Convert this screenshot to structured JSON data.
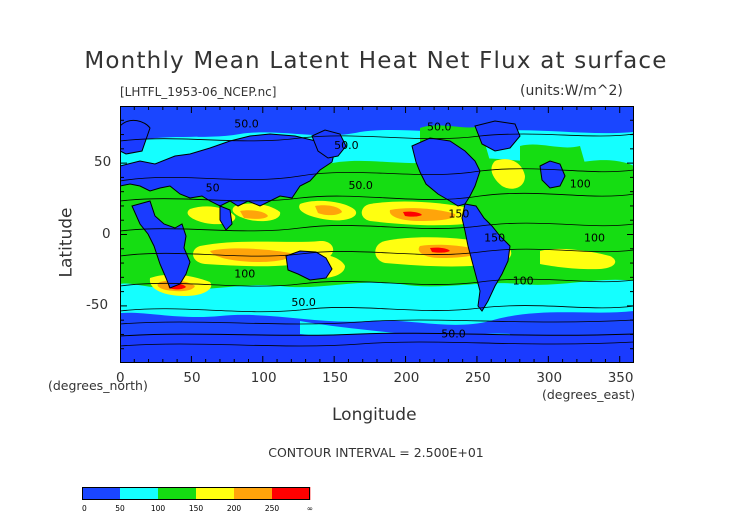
{
  "map": {
    "title": "Monthly Mean Latent Heat Net Flux at surface",
    "file_label": "[LHTFL_1953-06_NCEP.nc]",
    "units_label": "(units:W/m^2)",
    "y_axis_label": "Latitude",
    "y_units_note": "(degrees_north)",
    "x_axis_label": "Longitude",
    "x_units_note": "(degrees_east)",
    "contour_interval": "CONTOUR INTERVAL = 2.500E+01",
    "x_ticks": [
      "0",
      "50",
      "100",
      "150",
      "200",
      "250",
      "300",
      "350"
    ],
    "x_tick_values": [
      0,
      50,
      100,
      150,
      200,
      250,
      300,
      350
    ],
    "y_ticks": [
      "50",
      "0",
      "-50"
    ],
    "y_tick_values": [
      50,
      0,
      -50
    ],
    "xlim": [
      0,
      360
    ],
    "ylim": [
      -90,
      90
    ],
    "contour_labels": [
      {
        "text": "50.0",
        "lon": 80,
        "lat": 75
      },
      {
        "text": "50.0",
        "lon": 215,
        "lat": 73
      },
      {
        "text": "50.0",
        "lon": 150,
        "lat": 60
      },
      {
        "text": "50",
        "lon": 60,
        "lat": 30
      },
      {
        "text": "50.0",
        "lon": 160,
        "lat": 32
      },
      {
        "text": "100",
        "lon": 315,
        "lat": 33
      },
      {
        "text": "150",
        "lon": 230,
        "lat": 12
      },
      {
        "text": "150",
        "lon": 255,
        "lat": -5
      },
      {
        "text": "100",
        "lon": 325,
        "lat": -5
      },
      {
        "text": "100",
        "lon": 80,
        "lat": -30
      },
      {
        "text": "100",
        "lon": 275,
        "lat": -35
      },
      {
        "text": "50.0",
        "lon": 120,
        "lat": -50
      },
      {
        "text": "50.0",
        "lon": 225,
        "lat": -72
      }
    ],
    "colorbar": {
      "tick_labels": [
        "0",
        "50",
        "100",
        "150",
        "200",
        "250",
        "∞"
      ],
      "colors": [
        "#1a46ff",
        "#14ffff",
        "#15dd12",
        "#ffff10",
        "#ffa40a",
        "#ff0000"
      ],
      "boundaries": [
        0,
        25,
        50,
        75,
        100,
        125,
        150,
        175,
        200,
        225,
        250,
        275,
        300
      ]
    },
    "colors": {
      "level_0_50": "#1a46ff",
      "level_50_100": "#14ffff",
      "level_100_150": "#15dd12",
      "level_150_200": "#ffff10",
      "level_200_250": "#ffa40a",
      "level_250_inf": "#ff0000"
    }
  }
}
